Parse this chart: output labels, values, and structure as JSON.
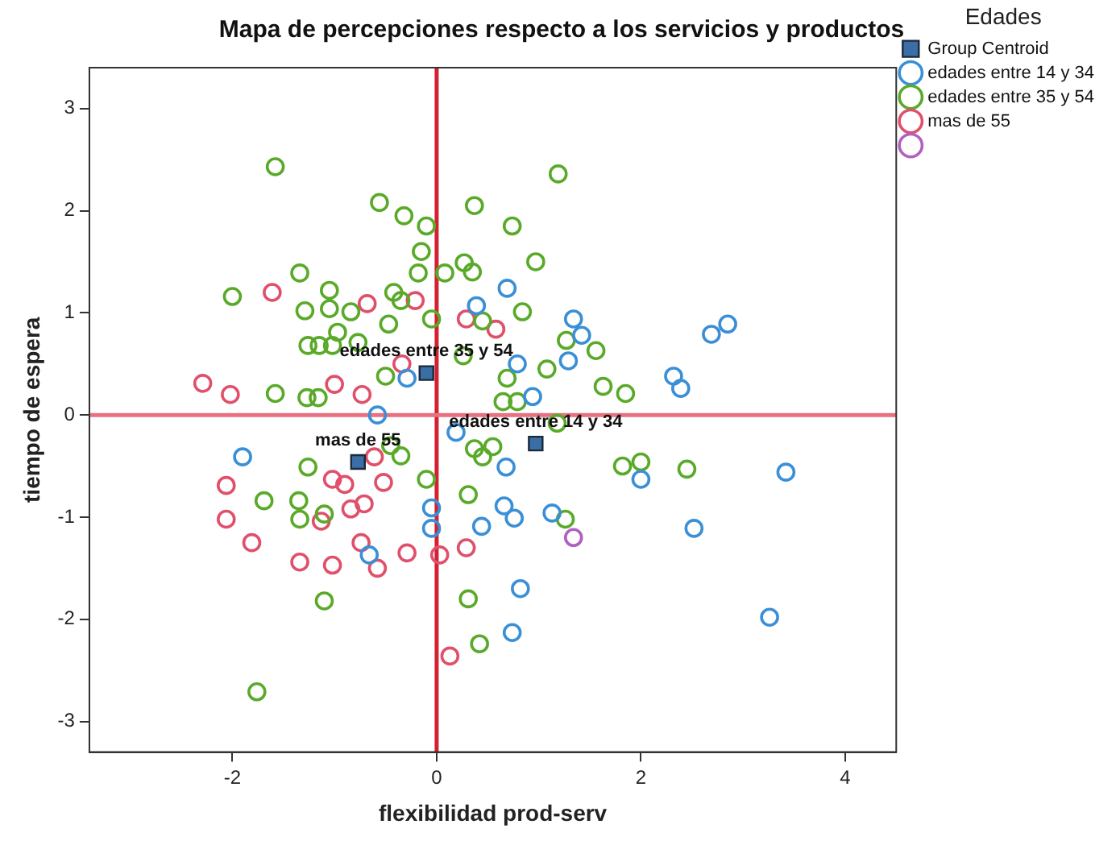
{
  "chart_data": {
    "type": "scatter",
    "title": "Mapa de percepciones respecto a los servicios y productos",
    "xlabel": "flexibilidad prod-serv",
    "ylabel": "tiempo de espera",
    "legend_title": "Edades",
    "legend": "right",
    "grid": false,
    "marker": "circle",
    "xlim": [
      -3.4,
      4.5
    ],
    "xticks": [
      -2,
      0,
      2,
      4
    ],
    "ylim": [
      -3.3,
      3.4
    ],
    "yticks": [
      -3,
      -2,
      -1,
      0,
      1,
      2,
      3
    ],
    "series": [
      {
        "name": "edades entre 14 y 34",
        "color": "#3a8fd6",
        "x": [
          -0.29,
          -0.58,
          0.69,
          0.39,
          1.34,
          1.42,
          1.29,
          0.79,
          2.69,
          2.85,
          2.32,
          2.39,
          0.94,
          -1.9,
          -0.66,
          -0.05,
          -0.05,
          0.19,
          0.68,
          0.66,
          0.76,
          0.44,
          1.13,
          2.0,
          2.52,
          3.42,
          3.26,
          0.82,
          0.74
        ],
        "values": [
          0.36,
          0.0,
          1.24,
          1.07,
          0.94,
          0.78,
          0.53,
          0.5,
          0.79,
          0.89,
          0.38,
          0.26,
          0.18,
          -0.41,
          -1.37,
          -0.91,
          -1.11,
          -0.17,
          -0.51,
          -0.89,
          -1.01,
          -1.09,
          -0.96,
          -0.63,
          -1.11,
          -0.56,
          -1.98,
          -1.7,
          -2.13
        ]
      },
      {
        "name": "edades entre 35 y 54",
        "color": "#5aaa2a",
        "x": [
          -1.58,
          -0.56,
          -0.32,
          -0.1,
          -0.15,
          -0.18,
          -1.34,
          -2.0,
          -1.05,
          -1.29,
          -1.05,
          -0.84,
          -0.42,
          -0.35,
          -0.47,
          -0.97,
          -1.26,
          -1.15,
          -1.02,
          -0.77,
          -0.5,
          -1.58,
          -1.27,
          -1.16,
          -0.05,
          1.19,
          0.37,
          0.74,
          0.97,
          0.27,
          0.35,
          0.08,
          0.84,
          0.45,
          1.27,
          1.56,
          1.08,
          0.69,
          1.63,
          1.85,
          0.26,
          0.65,
          0.79,
          -1.26,
          -1.69,
          -1.35,
          -1.34,
          -1.1,
          -1.1,
          -1.76,
          -0.35,
          -0.45,
          -0.1,
          0.37,
          0.45,
          0.55,
          0.31,
          1.26,
          1.82,
          2.0,
          2.45,
          0.31,
          0.42,
          1.18
        ],
        "values": [
          2.43,
          2.08,
          1.95,
          1.85,
          1.6,
          1.39,
          1.39,
          1.16,
          1.22,
          1.02,
          1.04,
          1.01,
          1.2,
          1.12,
          0.89,
          0.81,
          0.68,
          0.68,
          0.68,
          0.71,
          0.38,
          0.21,
          0.17,
          0.17,
          0.94,
          2.36,
          2.05,
          1.85,
          1.5,
          1.49,
          1.4,
          1.39,
          1.01,
          0.92,
          0.73,
          0.63,
          0.45,
          0.36,
          0.28,
          0.21,
          0.58,
          0.13,
          0.13,
          -0.51,
          -0.84,
          -0.84,
          -1.02,
          -0.97,
          -1.82,
          -2.71,
          -0.4,
          -0.3,
          -0.63,
          -0.33,
          -0.41,
          -0.31,
          -0.78,
          -1.02,
          -0.5,
          -0.46,
          -0.53,
          -1.8,
          -2.24,
          -0.08
        ]
      },
      {
        "name": "mas de 55",
        "color": "#e0506a",
        "x": [
          -1.61,
          -0.68,
          -0.21,
          -2.29,
          -2.02,
          -1.0,
          -0.73,
          -0.34,
          0.29,
          0.58,
          -2.06,
          -2.06,
          -1.81,
          -1.34,
          -1.02,
          -1.02,
          -0.9,
          -0.52,
          -0.61,
          -1.13,
          -0.84,
          -0.71,
          -0.74,
          -0.58,
          -0.29,
          0.29,
          0.03,
          0.13
        ],
        "values": [
          1.2,
          1.09,
          1.12,
          0.31,
          0.2,
          0.3,
          0.2,
          0.5,
          0.94,
          0.84,
          -0.69,
          -1.02,
          -1.25,
          -1.44,
          -1.47,
          -0.63,
          -0.68,
          -0.66,
          -0.41,
          -1.04,
          -0.92,
          -0.87,
          -1.25,
          -1.5,
          -1.35,
          -1.3,
          -1.37,
          -2.36
        ]
      },
      {
        "color": "#b060c0",
        "x": [
          1.34
        ],
        "values": [
          -1.2
        ]
      },
      {
        "name": "Group Centroid",
        "color": "#3a6ea5",
        "marker": "square",
        "x": [
          0.97,
          -0.1,
          -0.77
        ],
        "values": [
          -0.28,
          0.41,
          -0.46
        ]
      }
    ],
    "annotations": [
      {
        "text": "edades entre 14 y 34",
        "x": 0.97,
        "y": -0.28
      },
      {
        "text": "edades entre 35 y 54",
        "x": -0.1,
        "y": 0.41
      },
      {
        "text": "mas de 55",
        "x": -0.77,
        "y": -0.46
      }
    ],
    "ref_lines": [
      {
        "axis": "x",
        "value": 0,
        "color": "#d42030"
      },
      {
        "axis": "y",
        "value": 0,
        "color": "#e87080"
      }
    ]
  }
}
